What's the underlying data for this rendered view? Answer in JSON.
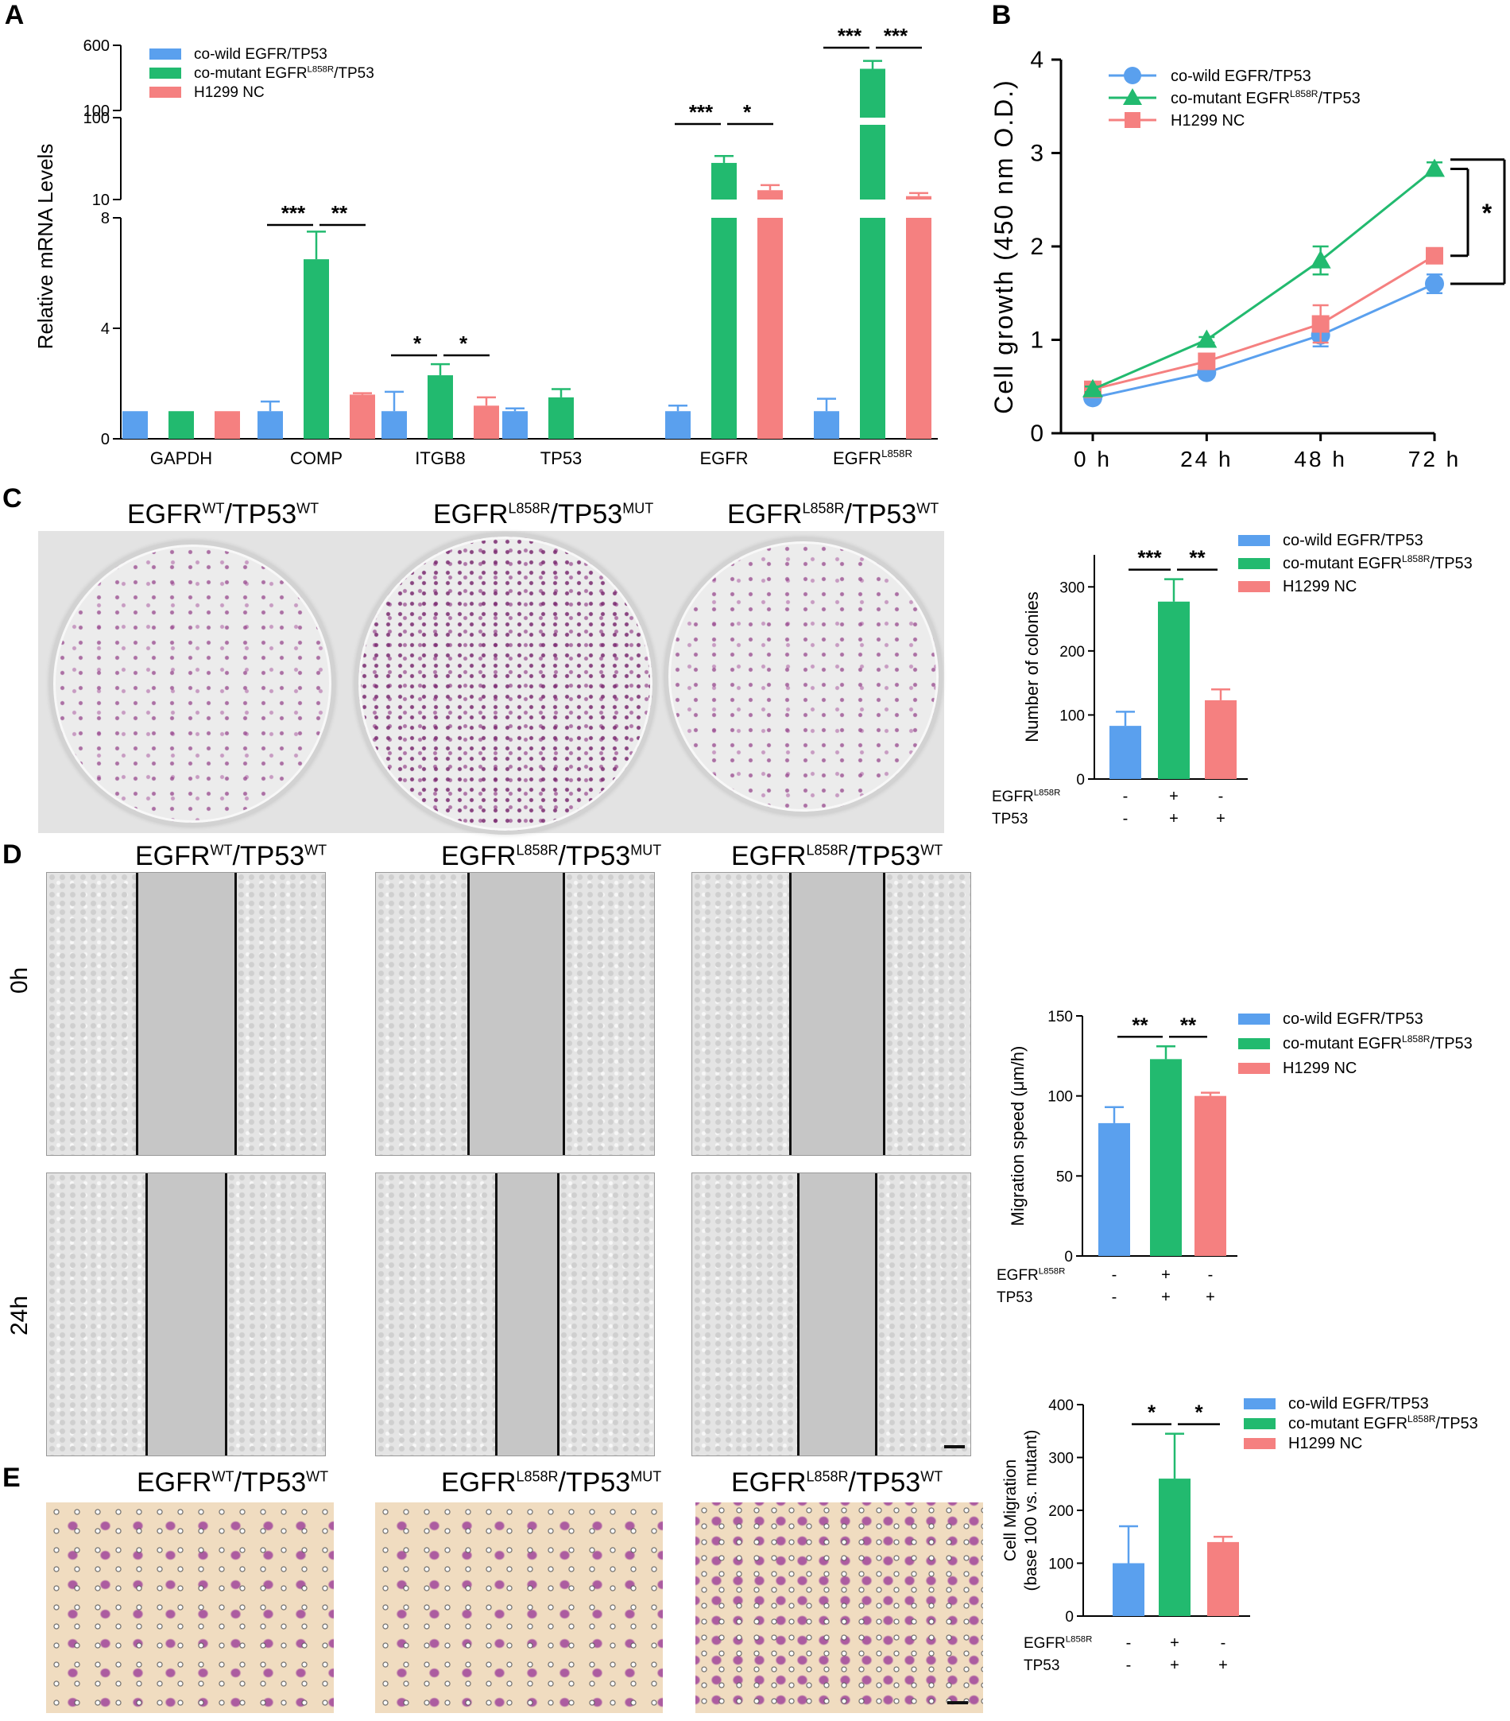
{
  "colors": {
    "blue": "#5aa0ee",
    "green": "#22ba6f",
    "red": "#f58080"
  },
  "legend_labels": [
    {
      "pre": "co-wild EGFR/TP53",
      "sup": "",
      "post": ""
    },
    {
      "pre": "co-mutant EGFR",
      "sup": "L858R",
      "post": "/TP53"
    },
    {
      "pre": "H1299 NC",
      "sup": "",
      "post": ""
    }
  ],
  "panel_letters": {
    "a": "A",
    "b": "B",
    "c": "C",
    "d": "D",
    "e": "E"
  },
  "condition_labels": [
    {
      "pre": "EGFR",
      "sup1": "WT",
      "mid": "/TP53",
      "sup2": "WT"
    },
    {
      "pre": "EGFR",
      "sup1": "L858R",
      "mid": "/TP53",
      "sup2": "MUT"
    },
    {
      "pre": "EGFR",
      "sup1": "L858R",
      "mid": "/TP53",
      "sup2": "WT"
    }
  ],
  "time_labels": {
    "t0": "0h",
    "t24": "24h"
  },
  "row_labels": {
    "egfr_pre": "EGFR",
    "egfr_sup": "L858R",
    "tp53": "TP53",
    "cols": [
      [
        "-",
        "-"
      ],
      [
        "+",
        "+"
      ],
      [
        "-",
        "+"
      ]
    ]
  },
  "chart_data": [
    {
      "id": "A",
      "type": "bar",
      "ylabel": "Relative mRNA Levels",
      "y_ticks": [
        "0",
        "4",
        "8",
        "10",
        "100",
        "100",
        "600"
      ],
      "categories": [
        "GAPDH",
        "COMP",
        "ITGB8",
        "TP53",
        "EGFR",
        "EGFR"
      ],
      "category_sup": [
        "",
        "",
        "",
        "",
        "",
        "L858R"
      ],
      "series": [
        {
          "name": "co-wild EGFR/TP53",
          "values": [
            1.0,
            1.0,
            1.0,
            1.0,
            1.0,
            1.0
          ],
          "errors": [
            0,
            0.35,
            0.7,
            0.1,
            0.2,
            0.45
          ]
        },
        {
          "name": "co-mutant EGFR L858R/TP53",
          "values": [
            1.0,
            6.5,
            2.3,
            1.5,
            28,
            420
          ],
          "errors": [
            0,
            1.0,
            0.4,
            0.3,
            6,
            60
          ]
        },
        {
          "name": "H1299 NC",
          "values": [
            1.0,
            1.6,
            1.2,
            null,
            13,
            11
          ],
          "errors": [
            0,
            0.05,
            0.3,
            null,
            2,
            1
          ]
        }
      ],
      "significance": [
        {
          "category": "COMP",
          "left": "***",
          "right": "**"
        },
        {
          "category": "ITGB8",
          "left": "*",
          "right": "*"
        },
        {
          "category": "EGFR",
          "left": "***",
          "right": "*"
        },
        {
          "category": "EGFR L858R",
          "left": "***",
          "right": "***"
        }
      ]
    },
    {
      "id": "B",
      "type": "line",
      "ylabel": "Cell growth (450 nm O.D.)",
      "x": [
        "0 h",
        "24 h",
        "48 h",
        "72 h"
      ],
      "ylim": [
        0,
        4
      ],
      "y_ticks": [
        "0",
        "1",
        "2",
        "3",
        "4"
      ],
      "series": [
        {
          "name": "co-wild EGFR/TP53",
          "marker": "circle",
          "values": [
            0.38,
            0.65,
            1.05,
            1.6
          ],
          "errors": [
            0.05,
            0.05,
            0.12,
            0.1
          ]
        },
        {
          "name": "co-mutant EGFR L858R/TP53",
          "marker": "triangle",
          "values": [
            0.47,
            1.0,
            1.85,
            2.83
          ],
          "errors": [
            0.03,
            0.03,
            0.15,
            0.07
          ]
        },
        {
          "name": "H1299 NC",
          "marker": "square",
          "values": [
            0.47,
            0.77,
            1.17,
            1.9
          ],
          "errors": [
            0.03,
            0.05,
            0.2,
            0.05
          ]
        }
      ],
      "significance": [
        "*",
        "**"
      ]
    },
    {
      "id": "C",
      "type": "bar",
      "ylabel": "Number of colonies",
      "ylim": [
        0,
        350
      ],
      "y_ticks": [
        "0",
        "100",
        "200",
        "300"
      ],
      "values": [
        83,
        277,
        123
      ],
      "errors": [
        22,
        35,
        17
      ],
      "significance": [
        "***",
        "**"
      ]
    },
    {
      "id": "D",
      "type": "bar",
      "ylabel": "Migration speed (μm/h)",
      "ylim": [
        0,
        150
      ],
      "y_ticks": [
        "0",
        "50",
        "100",
        "150"
      ],
      "values": [
        83,
        123,
        100
      ],
      "errors": [
        10,
        8,
        2
      ],
      "significance": [
        "**",
        "**"
      ]
    },
    {
      "id": "E",
      "type": "bar",
      "ylabel": "Cell Migration",
      "ylabel2": "(base 100 vs. mutant)",
      "ylim": [
        0,
        400
      ],
      "y_ticks": [
        "0",
        "100",
        "200",
        "300",
        "400"
      ],
      "values": [
        100,
        260,
        140
      ],
      "errors": [
        70,
        85,
        10
      ],
      "significance": [
        "*",
        "*"
      ]
    }
  ]
}
